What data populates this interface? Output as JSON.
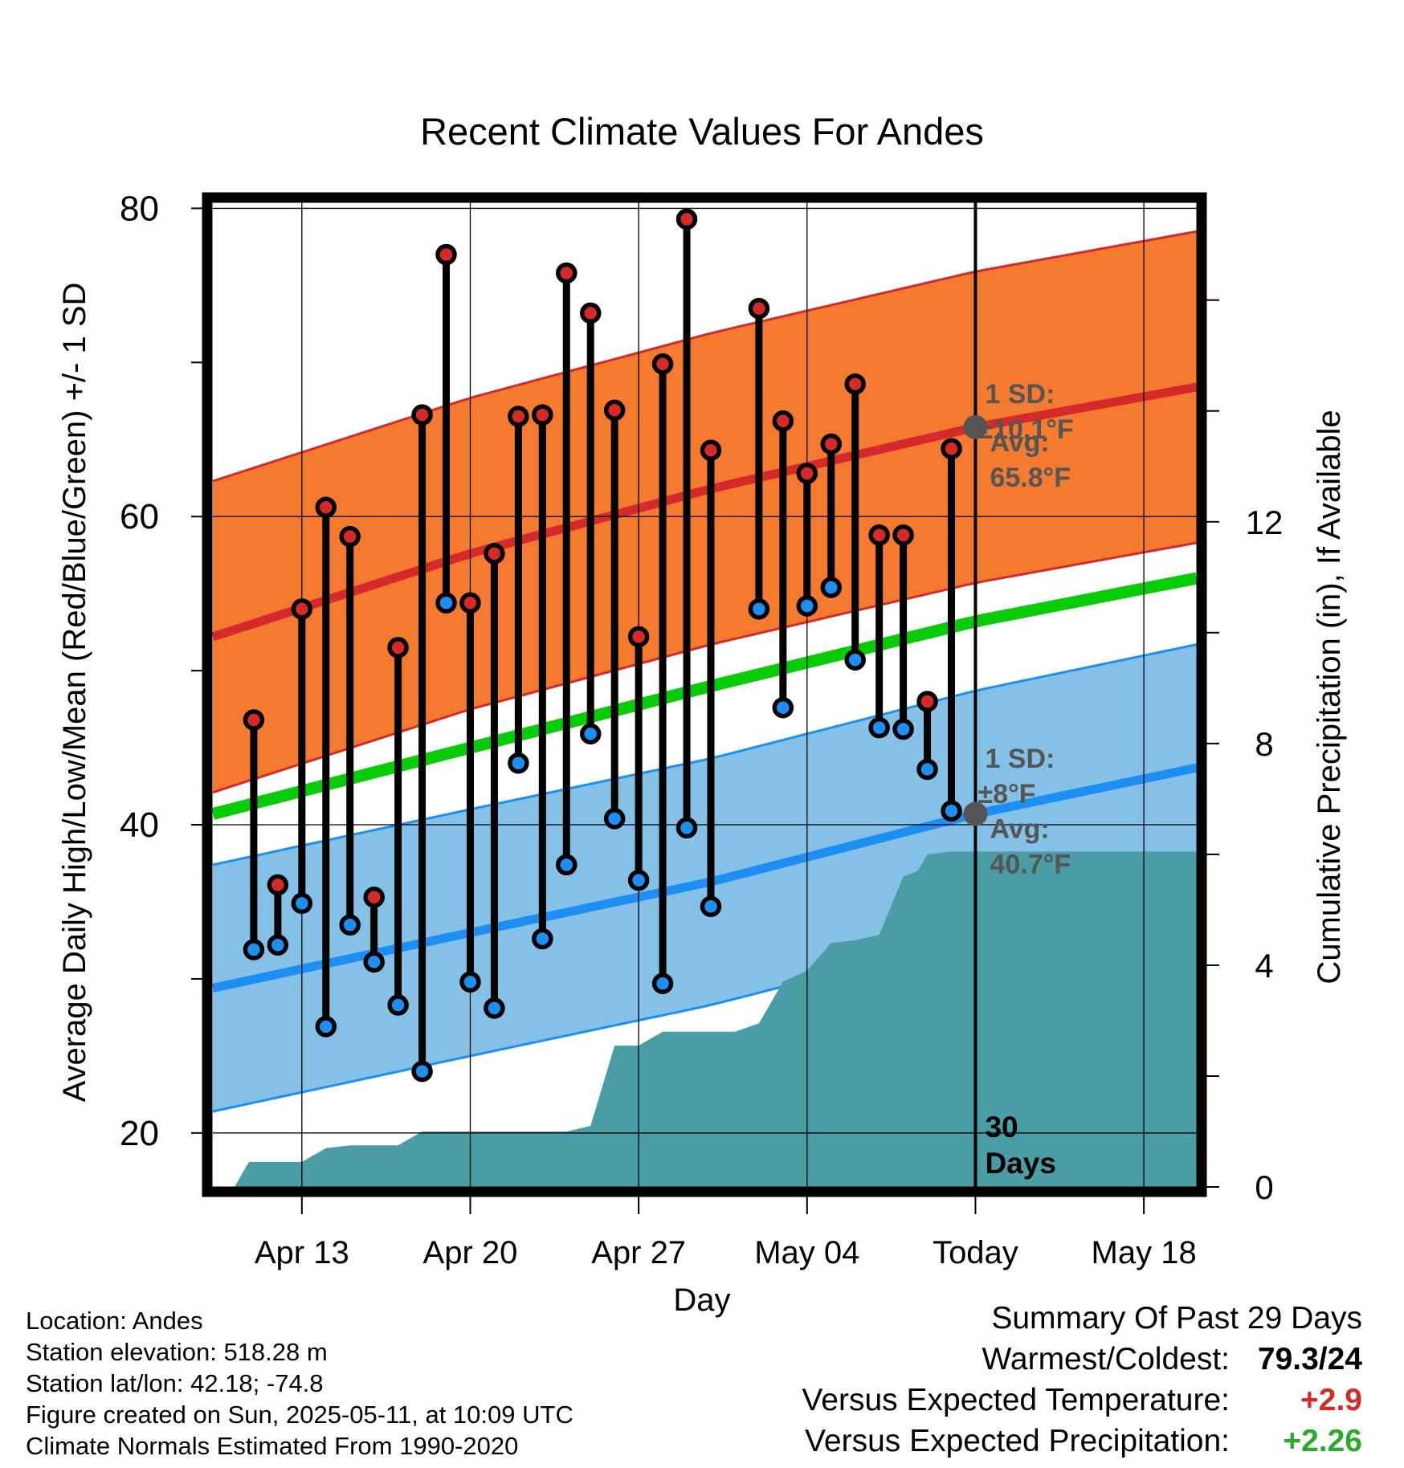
{
  "chart_data": {
    "type": "line",
    "title": "Recent Climate Values For Andes",
    "xlabel": "Day",
    "ylabel": "Average Daily High/Low/Mean (Red/Blue/Green) +/- 1 SD",
    "y2label": "Cumulative Precipitation (in), If Available",
    "x_tick_labels": [
      "Apr 13",
      "Apr 20",
      "Apr 27",
      "May 04",
      "Today",
      "May 18"
    ],
    "x_tick_days": [
      3,
      10,
      17,
      24,
      31,
      38
    ],
    "x_range_days": [
      -0.7,
      40.2
    ],
    "ylim": [
      16.5,
      80.7
    ],
    "y_ticks": [
      20,
      40,
      60,
      80
    ],
    "y2lim": [
      0,
      17.85
    ],
    "y2_ticks": [
      0,
      4,
      8,
      12
    ],
    "grid": true,
    "today_day": 31,
    "today_label": "30 Days",
    "high_annotation": {
      "sd": "1 SD:",
      "sd_value": "±10.1°F",
      "avg": "Avg:",
      "avg_value": "65.8°F",
      "value": 65.8
    },
    "low_annotation": {
      "sd": "1 SD:",
      "sd_value": "±8°F",
      "avg": "Avg:",
      "avg_value": "40.7°F",
      "value": 40.7
    },
    "normal_high": {
      "x": [
        -0.7,
        10,
        20,
        31,
        40.2
      ],
      "y": [
        52.2,
        57.6,
        61.8,
        65.8,
        68.4
      ],
      "sd": 10.1
    },
    "normal_mean": {
      "x": [
        -0.7,
        10,
        20,
        31,
        40.2
      ],
      "y": [
        40.7,
        45.0,
        49.0,
        53.2,
        56.0
      ]
    },
    "normal_low": {
      "x": [
        -0.7,
        10,
        20,
        31,
        40.2
      ],
      "y": [
        29.4,
        33.0,
        36.3,
        40.7,
        43.7
      ],
      "sd": 8.0
    },
    "daily": [
      {
        "day": 1,
        "high": 46.8,
        "low": 31.9
      },
      {
        "day": 2,
        "high": 36.1,
        "low": 32.2
      },
      {
        "day": 3,
        "high": 54.0,
        "low": 34.9
      },
      {
        "day": 4,
        "high": 60.6,
        "low": 26.9
      },
      {
        "day": 5,
        "high": 58.7,
        "low": 33.5
      },
      {
        "day": 6,
        "high": 35.3,
        "low": 31.1
      },
      {
        "day": 7,
        "high": 51.5,
        "low": 28.3
      },
      {
        "day": 8,
        "high": 66.6,
        "low": 24.0
      },
      {
        "day": 9,
        "high": 77.0,
        "low": 54.4
      },
      {
        "day": 10,
        "high": 54.4,
        "low": 29.8
      },
      {
        "day": 11,
        "high": 57.6,
        "low": 28.1
      },
      {
        "day": 12,
        "high": 66.5,
        "low": 44.0
      },
      {
        "day": 13,
        "high": 66.6,
        "low": 32.6
      },
      {
        "day": 14,
        "high": 75.8,
        "low": 37.4
      },
      {
        "day": 15,
        "high": 73.2,
        "low": 45.9
      },
      {
        "day": 16,
        "high": 66.9,
        "low": 40.4
      },
      {
        "day": 17,
        "high": 52.2,
        "low": 36.4
      },
      {
        "day": 18,
        "high": 69.9,
        "low": 29.7
      },
      {
        "day": 19,
        "high": 79.3,
        "low": 39.8
      },
      {
        "day": 20,
        "high": 64.3,
        "low": 34.7
      },
      {
        "day": 22,
        "high": 73.5,
        "low": 54.0
      },
      {
        "day": 23,
        "high": 66.2,
        "low": 47.6
      },
      {
        "day": 24,
        "high": 62.8,
        "low": 54.2
      },
      {
        "day": 25,
        "high": 64.7,
        "low": 55.4
      },
      {
        "day": 26,
        "high": 68.6,
        "low": 50.7
      },
      {
        "day": 27,
        "high": 58.8,
        "low": 46.3
      },
      {
        "day": 28,
        "high": 58.8,
        "low": 46.2
      },
      {
        "day": 29,
        "high": 48.0,
        "low": 43.6
      },
      {
        "day": 30,
        "high": 64.4,
        "low": 40.9
      }
    ],
    "precip": {
      "x": [
        0.2,
        0.8,
        2.0,
        3.0,
        4.0,
        5.0,
        6.0,
        7.0,
        8.0,
        9.0,
        10.0,
        11.0,
        12.0,
        13.0,
        14.0,
        15.0,
        16.0,
        17.0,
        18.0,
        19.0,
        20.0,
        21.0,
        22.0,
        23.0,
        24.0,
        25.0,
        26.0,
        27.0,
        28.0,
        28.6,
        29.0,
        30.0,
        31.0,
        40.2
      ],
      "y": [
        0.0,
        0.45,
        0.45,
        0.45,
        0.7,
        0.75,
        0.75,
        0.75,
        1.0,
        1.0,
        1.0,
        1.0,
        1.0,
        1.0,
        1.0,
        1.1,
        2.55,
        2.55,
        2.8,
        2.8,
        2.8,
        2.8,
        2.95,
        3.7,
        3.9,
        4.4,
        4.45,
        4.55,
        5.6,
        5.7,
        6.0,
        6.05,
        6.05,
        6.05
      ]
    },
    "colors": {
      "high_band": "#f47a30",
      "high_line": "#d42a2a",
      "low_band": "#85c1e7",
      "low_line": "#1e8ff2",
      "mean_line": "#07cc07",
      "precip": "#4a9ca5",
      "high_marker": "#d42a2a",
      "low_marker": "#1e8ff2",
      "annotation_text": "#555555",
      "today_marker": "#555555"
    }
  },
  "footer": {
    "location": "Location: Andes",
    "elevation": "Station elevation: 518.28 m",
    "latlon": "Station lat/lon: 42.18; -74.8",
    "created": "Figure created on Sun, 2025-05-11, at 10:09 UTC",
    "normals": "Climate Normals Estimated From 1990-2020"
  },
  "summary": {
    "title": "Summary Of Past 29 Days",
    "warm_cold_label": "Warmest/Coldest:",
    "warm_cold_value": "79.3/24",
    "temp_label": "Versus Expected Temperature:",
    "temp_value": "+2.9",
    "temp_color": "#d42a2a",
    "precip_label": "Versus Expected Precipitation:",
    "precip_value": "+2.26",
    "precip_color": "#2aaa2a"
  }
}
